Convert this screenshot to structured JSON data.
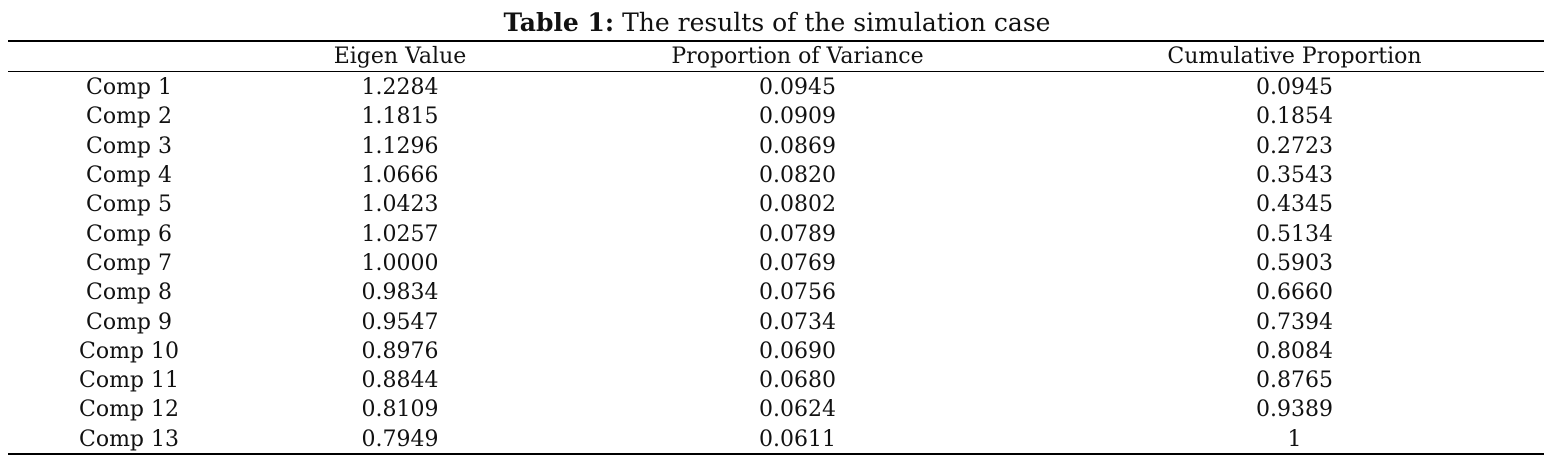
{
  "caption": {
    "label": "Table 1:",
    "text": "The results of the simulation case"
  },
  "table": {
    "headers": [
      "",
      "Eigen Value",
      "Proportion of Variance",
      "Cumulative Proportion"
    ],
    "rows": [
      [
        "Comp 1",
        "1.2284",
        "0.0945",
        "0.0945"
      ],
      [
        "Comp 2",
        "1.1815",
        "0.0909",
        "0.1854"
      ],
      [
        "Comp 3",
        "1.1296",
        "0.0869",
        "0.2723"
      ],
      [
        "Comp 4",
        "1.0666",
        "0.0820",
        "0.3543"
      ],
      [
        "Comp 5",
        "1.0423",
        "0.0802",
        "0.4345"
      ],
      [
        "Comp 6",
        "1.0257",
        "0.0789",
        "0.5134"
      ],
      [
        "Comp 7",
        "1.0000",
        "0.0769",
        "0.5903"
      ],
      [
        "Comp 8",
        "0.9834",
        "0.0756",
        "0.6660"
      ],
      [
        "Comp 9",
        "0.9547",
        "0.0734",
        "0.7394"
      ],
      [
        "Comp 10",
        "0.8976",
        "0.0690",
        "0.8084"
      ],
      [
        "Comp 11",
        "0.8844",
        "0.0680",
        "0.8765"
      ],
      [
        "Comp 12",
        "0.8109",
        "0.0624",
        "0.9389"
      ],
      [
        "Comp 13",
        "0.7949",
        "0.0611",
        "1"
      ]
    ]
  }
}
